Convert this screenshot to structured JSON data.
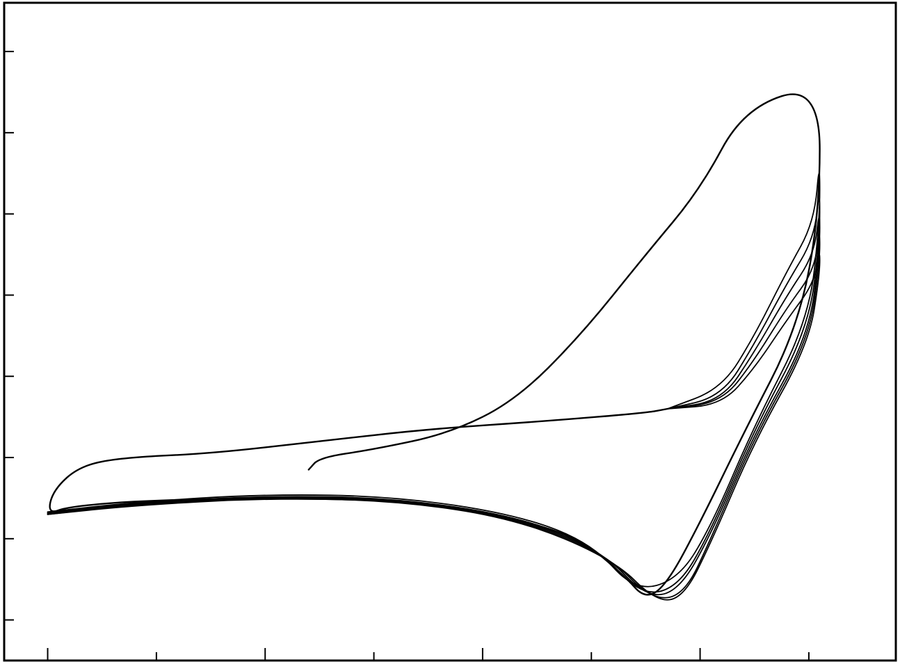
{
  "chart_data": {
    "type": "line",
    "title": "",
    "xlabel": "",
    "ylabel": "",
    "x_ticks": [
      0,
      1,
      2,
      3,
      4,
      5,
      6,
      7
    ],
    "y_ticks": [
      0,
      1,
      2,
      3,
      4,
      5,
      6,
      7
    ],
    "xlim": [
      -0.4,
      7.8
    ],
    "ylim": [
      -0.5,
      7.6
    ],
    "grid": false,
    "legend": "none",
    "line_color": "#000000",
    "series": [
      {
        "points": [
          [
            2.4,
            1.85
          ],
          [
            2.5,
            2.0
          ],
          [
            3.0,
            2.1
          ],
          [
            3.7,
            2.3
          ],
          [
            4.3,
            2.7
          ],
          [
            4.9,
            3.5
          ],
          [
            5.5,
            4.5
          ],
          [
            6.0,
            5.3
          ],
          [
            6.4,
            6.3
          ],
          [
            7.1,
            6.6
          ],
          [
            7.1,
            5.0
          ],
          [
            6.9,
            3.6
          ],
          [
            6.4,
            2.3
          ],
          [
            6.0,
            1.2
          ],
          [
            5.7,
            0.45
          ],
          [
            5.5,
            0.25
          ],
          [
            5.3,
            0.55
          ],
          [
            4.9,
            1.0
          ],
          [
            4.3,
            1.25
          ],
          [
            3.5,
            1.45
          ],
          [
            2.4,
            1.5
          ],
          [
            1.0,
            1.48
          ],
          [
            0.2,
            1.4
          ],
          [
            0.0,
            1.3
          ],
          [
            0.05,
            1.6
          ],
          [
            0.3,
            1.9
          ],
          [
            0.7,
            2.0
          ],
          [
            1.5,
            2.05
          ],
          [
            2.5,
            2.2
          ],
          [
            3.5,
            2.35
          ],
          [
            4.6,
            2.45
          ],
          [
            5.5,
            2.55
          ],
          [
            5.7,
            2.6
          ]
        ]
      },
      {
        "points": [
          [
            5.7,
            2.6
          ],
          [
            6.2,
            2.85
          ],
          [
            6.5,
            3.5
          ],
          [
            6.8,
            4.3
          ],
          [
            7.05,
            4.9
          ],
          [
            7.1,
            5.7
          ],
          [
            7.1,
            4.9
          ],
          [
            7.0,
            3.7
          ],
          [
            6.5,
            2.4
          ],
          [
            6.1,
            1.15
          ],
          [
            5.8,
            0.5
          ],
          [
            5.4,
            0.35
          ],
          [
            5.0,
            0.95
          ],
          [
            4.3,
            1.3
          ],
          [
            3.2,
            1.52
          ],
          [
            2.0,
            1.55
          ],
          [
            0.8,
            1.45
          ],
          [
            0.0,
            1.33
          ]
        ]
      },
      {
        "points": [
          [
            5.7,
            2.6
          ],
          [
            6.2,
            2.75
          ],
          [
            6.5,
            3.4
          ],
          [
            6.8,
            4.15
          ],
          [
            7.05,
            4.7
          ],
          [
            7.1,
            5.35
          ],
          [
            7.1,
            4.7
          ],
          [
            7.0,
            3.6
          ],
          [
            6.5,
            2.35
          ],
          [
            6.1,
            1.1
          ],
          [
            5.8,
            0.4
          ],
          [
            5.45,
            0.3
          ],
          [
            5.05,
            0.9
          ],
          [
            4.3,
            1.28
          ],
          [
            3.2,
            1.5
          ],
          [
            2.0,
            1.53
          ],
          [
            0.8,
            1.44
          ],
          [
            0.0,
            1.32
          ]
        ]
      },
      {
        "points": [
          [
            5.7,
            2.6
          ],
          [
            6.2,
            2.7
          ],
          [
            6.5,
            3.3
          ],
          [
            6.8,
            4.0
          ],
          [
            7.05,
            4.5
          ],
          [
            7.1,
            5.1
          ],
          [
            7.1,
            4.55
          ],
          [
            7.0,
            3.5
          ],
          [
            6.5,
            2.3
          ],
          [
            6.1,
            1.05
          ],
          [
            5.8,
            0.35
          ],
          [
            5.5,
            0.28
          ],
          [
            5.1,
            0.85
          ],
          [
            4.3,
            1.27
          ],
          [
            3.2,
            1.49
          ],
          [
            2.0,
            1.52
          ],
          [
            0.8,
            1.43
          ],
          [
            0.0,
            1.31
          ]
        ]
      },
      {
        "points": [
          [
            5.7,
            2.6
          ],
          [
            6.2,
            2.68
          ],
          [
            6.5,
            3.2
          ],
          [
            6.8,
            3.85
          ],
          [
            7.05,
            4.3
          ],
          [
            7.1,
            4.85
          ],
          [
            7.1,
            4.4
          ],
          [
            7.0,
            3.45
          ],
          [
            6.5,
            2.25
          ],
          [
            6.1,
            1.0
          ],
          [
            5.85,
            0.3
          ],
          [
            5.55,
            0.25
          ],
          [
            5.15,
            0.8
          ],
          [
            4.3,
            1.26
          ],
          [
            3.2,
            1.48
          ],
          [
            2.0,
            1.51
          ],
          [
            0.8,
            1.42
          ],
          [
            0.0,
            1.3
          ]
        ]
      },
      {
        "points": [
          [
            5.7,
            2.6
          ],
          [
            6.2,
            2.65
          ],
          [
            6.5,
            3.1
          ],
          [
            6.8,
            3.7
          ],
          [
            7.05,
            4.15
          ],
          [
            7.1,
            4.6
          ],
          [
            7.1,
            4.25
          ],
          [
            7.0,
            3.4
          ],
          [
            6.5,
            2.2
          ],
          [
            6.1,
            0.95
          ],
          [
            5.85,
            0.28
          ],
          [
            5.6,
            0.22
          ],
          [
            5.2,
            0.75
          ],
          [
            4.3,
            1.25
          ],
          [
            3.2,
            1.47
          ],
          [
            2.0,
            1.5
          ],
          [
            0.8,
            1.41
          ],
          [
            0.0,
            1.3
          ]
        ]
      }
    ]
  }
}
